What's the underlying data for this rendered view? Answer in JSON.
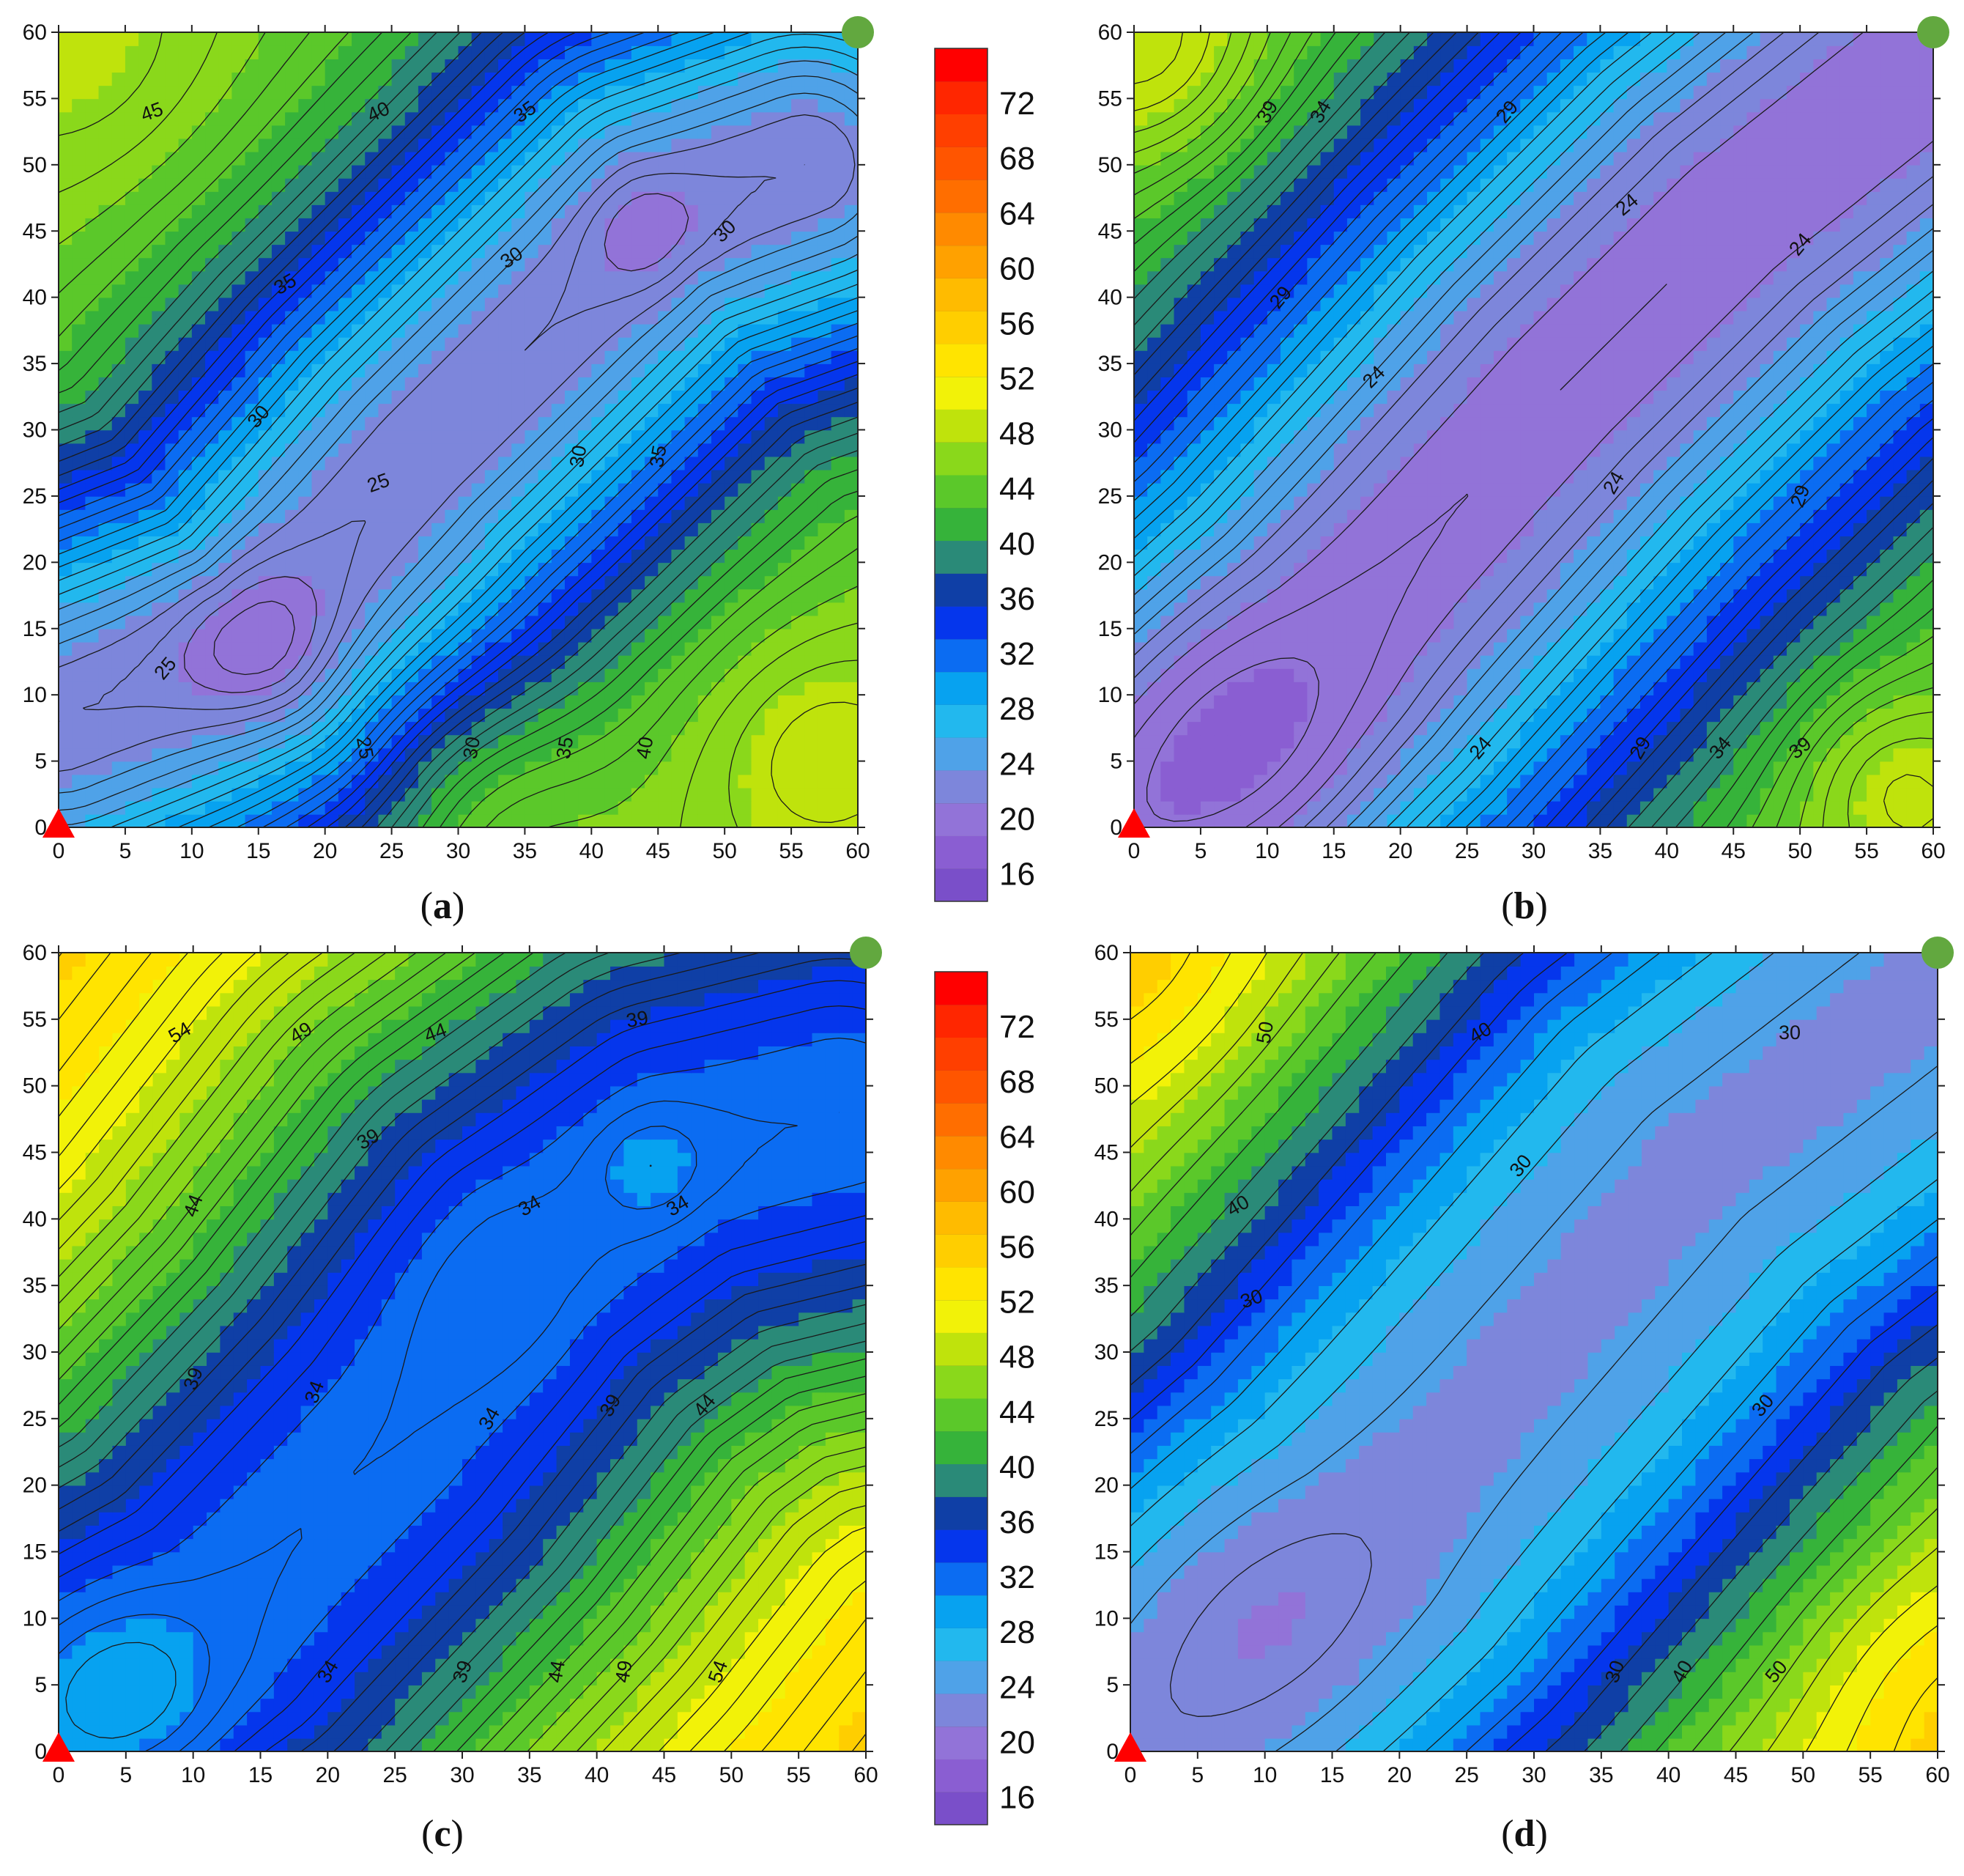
{
  "colors": {
    "ramp": [
      "#7a4fc9",
      "#8a5ed2",
      "#9273d8",
      "#7d86db",
      "#4fa2e8",
      "#22b8ee",
      "#07a2f0",
      "#0b6cf2",
      "#0536ec",
      "#0f3fa6",
      "#2a8a78",
      "#36b33a",
      "#5bc82a",
      "#8ad81b",
      "#bfe30c",
      "#f2f208",
      "#ffe400",
      "#ffce00",
      "#ffbb00",
      "#ffa100",
      "#ff8a00",
      "#ff6e00",
      "#ff5500",
      "#ff3f00",
      "#ff2600",
      "#ff0000"
    ],
    "source_marker": "#ff0000",
    "receiver_marker": "#62a83f"
  },
  "colorbar": {
    "min": 14,
    "max": 76,
    "labels": [
      "72",
      "68",
      "64",
      "60",
      "56",
      "52",
      "48",
      "44",
      "40",
      "36",
      "32",
      "28",
      "24",
      "20",
      "16"
    ],
    "label_values": [
      72,
      68,
      64,
      60,
      56,
      52,
      48,
      44,
      40,
      36,
      32,
      28,
      24,
      20,
      16
    ]
  },
  "chart_data": [
    {
      "type": "heatmap",
      "panel": "a",
      "caption_letter": "a",
      "xlim": [
        0,
        60
      ],
      "ylim": [
        0,
        60
      ],
      "xticks": [
        "0",
        "5",
        "10",
        "15",
        "20",
        "25",
        "30",
        "35",
        "40",
        "45",
        "50",
        "55",
        "60"
      ],
      "yticks": [
        "0",
        "5",
        "10",
        "15",
        "20",
        "25",
        "30",
        "35",
        "40",
        "45",
        "50",
        "55",
        "60"
      ],
      "contour_interval": 1,
      "base": 46,
      "trough": {
        "points": [
          [
            0,
            8
          ],
          [
            15,
            14
          ],
          [
            27,
            28
          ],
          [
            45,
            46
          ],
          [
            56,
            50
          ]
        ],
        "depth": 24,
        "width": 13
      },
      "bumps": [
        {
          "x": 15,
          "y": 14,
          "amp": -3,
          "sigma": 4
        },
        {
          "x": 44,
          "y": 45,
          "amp": -2,
          "sigma": 3
        },
        {
          "x": 57,
          "y": 6,
          "amp": 3,
          "sigma": 7
        },
        {
          "x": 2,
          "y": 58,
          "amp": 2,
          "sigma": 8
        },
        {
          "x": 30,
          "y": 2,
          "amp": 4,
          "sigma": 7
        }
      ],
      "contour_labels": [
        {
          "text": "45",
          "x": 7,
          "y": 54,
          "angle": -20
        },
        {
          "text": "40",
          "x": 24,
          "y": 54,
          "angle": -25
        },
        {
          "text": "35",
          "x": 35,
          "y": 54,
          "angle": -35
        },
        {
          "text": "35",
          "x": 17,
          "y": 41,
          "angle": -30
        },
        {
          "text": "30",
          "x": 34,
          "y": 43,
          "angle": -35
        },
        {
          "text": "30",
          "x": 50,
          "y": 45,
          "angle": -45
        },
        {
          "text": "30",
          "x": 15,
          "y": 31,
          "angle": -50
        },
        {
          "text": "25",
          "x": 24,
          "y": 26,
          "angle": -20
        },
        {
          "text": "30",
          "x": 39,
          "y": 28,
          "angle": -80
        },
        {
          "text": "35",
          "x": 45,
          "y": 28,
          "angle": -80
        },
        {
          "text": "25",
          "x": 8,
          "y": 12,
          "angle": -50
        },
        {
          "text": "25",
          "x": 23,
          "y": 6,
          "angle": 80
        },
        {
          "text": "30",
          "x": 31,
          "y": 6,
          "angle": -80
        },
        {
          "text": "35",
          "x": 38,
          "y": 6,
          "angle": -80
        },
        {
          "text": "40",
          "x": 44,
          "y": 6,
          "angle": -80
        }
      ],
      "source": {
        "x": 0,
        "y": 0
      },
      "receiver": {
        "x": 60,
        "y": 60
      }
    },
    {
      "type": "heatmap",
      "panel": "b",
      "caption_letter": "b",
      "xlim": [
        0,
        60
      ],
      "ylim": [
        0,
        60
      ],
      "xticks": [
        "0",
        "5",
        "10",
        "15",
        "20",
        "25",
        "30",
        "35",
        "40",
        "45",
        "50",
        "55",
        "60"
      ],
      "yticks": [
        "0",
        "5",
        "10",
        "15",
        "20",
        "25",
        "30",
        "35",
        "40",
        "45",
        "50",
        "55",
        "60"
      ],
      "contour_interval": 1,
      "base": 48,
      "trough": {
        "points": [
          [
            0,
            0
          ],
          [
            15,
            14
          ],
          [
            32,
            33
          ],
          [
            45,
            46
          ],
          [
            60,
            58
          ]
        ],
        "depth": 28,
        "width": 18
      },
      "bumps": [
        {
          "x": 8,
          "y": 6,
          "amp": -2,
          "sigma": 7
        },
        {
          "x": 56,
          "y": 4,
          "amp": 3,
          "sigma": 5
        },
        {
          "x": 2,
          "y": 58,
          "amp": 4,
          "sigma": 6
        }
      ],
      "contour_labels": [
        {
          "text": "39",
          "x": 10,
          "y": 54,
          "angle": -60
        },
        {
          "text": "34",
          "x": 14,
          "y": 54,
          "angle": -60
        },
        {
          "text": "29",
          "x": 28,
          "y": 54,
          "angle": -50
        },
        {
          "text": "24",
          "x": 37,
          "y": 47,
          "angle": -40
        },
        {
          "text": "24",
          "x": 50,
          "y": 44,
          "angle": -50
        },
        {
          "text": "29",
          "x": 11,
          "y": 40,
          "angle": -50
        },
        {
          "text": "24",
          "x": 18,
          "y": 34,
          "angle": -45
        },
        {
          "text": "24",
          "x": 36,
          "y": 26,
          "angle": -60
        },
        {
          "text": "29",
          "x": 50,
          "y": 25,
          "angle": -70
        },
        {
          "text": "24",
          "x": 26,
          "y": 6,
          "angle": -50
        },
        {
          "text": "29",
          "x": 38,
          "y": 6,
          "angle": -60
        },
        {
          "text": "34",
          "x": 44,
          "y": 6,
          "angle": -50
        },
        {
          "text": "39",
          "x": 50,
          "y": 6,
          "angle": -40
        }
      ],
      "source": {
        "x": 0,
        "y": 0
      },
      "receiver": {
        "x": 60,
        "y": 60
      }
    },
    {
      "type": "heatmap",
      "panel": "c",
      "caption_letter": "c",
      "xlim": [
        0,
        60
      ],
      "ylim": [
        0,
        60
      ],
      "xticks": [
        "0",
        "5",
        "10",
        "15",
        "20",
        "25",
        "30",
        "35",
        "40",
        "45",
        "50",
        "55",
        "60"
      ],
      "yticks": [
        "0",
        "5",
        "10",
        "15",
        "20",
        "25",
        "30",
        "35",
        "40",
        "45",
        "50",
        "55",
        "60"
      ],
      "contour_interval": 1,
      "base": 58,
      "trough": {
        "points": [
          [
            0,
            3
          ],
          [
            12,
            10
          ],
          [
            25,
            24
          ],
          [
            35,
            37
          ],
          [
            46,
            45
          ],
          [
            58,
            48
          ]
        ],
        "depth": 26,
        "width": 20
      },
      "bumps": [
        {
          "x": 5,
          "y": 4,
          "amp": -3,
          "sigma": 5
        },
        {
          "x": 44,
          "y": 44,
          "amp": -2,
          "sigma": 3
        },
        {
          "x": 32,
          "y": 35,
          "amp": -1,
          "sigma": 5
        }
      ],
      "contour_labels": [
        {
          "text": "54",
          "x": 9,
          "y": 54,
          "angle": -30
        },
        {
          "text": "49",
          "x": 18,
          "y": 54,
          "angle": -30
        },
        {
          "text": "44",
          "x": 28,
          "y": 54,
          "angle": -20
        },
        {
          "text": "39",
          "x": 43,
          "y": 55,
          "angle": -10
        },
        {
          "text": "39",
          "x": 23,
          "y": 46,
          "angle": -30
        },
        {
          "text": "34",
          "x": 35,
          "y": 41,
          "angle": -30
        },
        {
          "text": "34",
          "x": 46,
          "y": 41,
          "angle": -30
        },
        {
          "text": "44",
          "x": 10,
          "y": 41,
          "angle": -70
        },
        {
          "text": "39",
          "x": 10,
          "y": 28,
          "angle": -70
        },
        {
          "text": "34",
          "x": 19,
          "y": 27,
          "angle": -70
        },
        {
          "text": "34",
          "x": 32,
          "y": 25,
          "angle": -60
        },
        {
          "text": "39",
          "x": 41,
          "y": 26,
          "angle": -60
        },
        {
          "text": "44",
          "x": 48,
          "y": 26,
          "angle": -50
        },
        {
          "text": "34",
          "x": 20,
          "y": 6,
          "angle": -60
        },
        {
          "text": "39",
          "x": 30,
          "y": 6,
          "angle": -70
        },
        {
          "text": "44",
          "x": 37,
          "y": 6,
          "angle": -80
        },
        {
          "text": "49",
          "x": 42,
          "y": 6,
          "angle": -80
        },
        {
          "text": "54",
          "x": 49,
          "y": 6,
          "angle": -70
        }
      ],
      "source": {
        "x": 0,
        "y": 0
      },
      "receiver": {
        "x": 60,
        "y": 60
      }
    },
    {
      "type": "heatmap",
      "panel": "d",
      "caption_letter": "d",
      "xlim": [
        0,
        60
      ],
      "ylim": [
        0,
        60
      ],
      "xticks": [
        "0",
        "5",
        "10",
        "15",
        "20",
        "25",
        "30",
        "35",
        "40",
        "45",
        "50",
        "55",
        "60"
      ],
      "yticks": [
        "0",
        "5",
        "10",
        "15",
        "20",
        "25",
        "30",
        "35",
        "40",
        "45",
        "50",
        "55",
        "60"
      ],
      "contour_interval": 2,
      "base": 60,
      "trough": {
        "points": [
          [
            0,
            0
          ],
          [
            18,
            16
          ],
          [
            30,
            30
          ],
          [
            42,
            44
          ],
          [
            60,
            58
          ]
        ],
        "depth": 37,
        "width": 22
      },
      "bumps": [
        {
          "x": 10,
          "y": 10,
          "amp": -2,
          "sigma": 8
        },
        {
          "x": 2,
          "y": 58,
          "amp": 2,
          "sigma": 6
        },
        {
          "x": 58,
          "y": 6,
          "amp": 2,
          "sigma": 6
        }
      ],
      "contour_labels": [
        {
          "text": "50",
          "x": 10,
          "y": 54,
          "angle": -80
        },
        {
          "text": "40",
          "x": 26,
          "y": 54,
          "angle": -30
        },
        {
          "text": "30",
          "x": 49,
          "y": 54,
          "angle": 0
        },
        {
          "text": "30",
          "x": 29,
          "y": 44,
          "angle": -50
        },
        {
          "text": "40",
          "x": 8,
          "y": 41,
          "angle": -30
        },
        {
          "text": "30",
          "x": 9,
          "y": 34,
          "angle": -20
        },
        {
          "text": "30",
          "x": 47,
          "y": 26,
          "angle": -50
        },
        {
          "text": "30",
          "x": 36,
          "y": 6,
          "angle": -70
        },
        {
          "text": "40",
          "x": 41,
          "y": 6,
          "angle": -60
        },
        {
          "text": "50",
          "x": 48,
          "y": 6,
          "angle": -50
        }
      ],
      "source": {
        "x": 0,
        "y": 0
      },
      "receiver": {
        "x": 60,
        "y": 60
      }
    }
  ]
}
